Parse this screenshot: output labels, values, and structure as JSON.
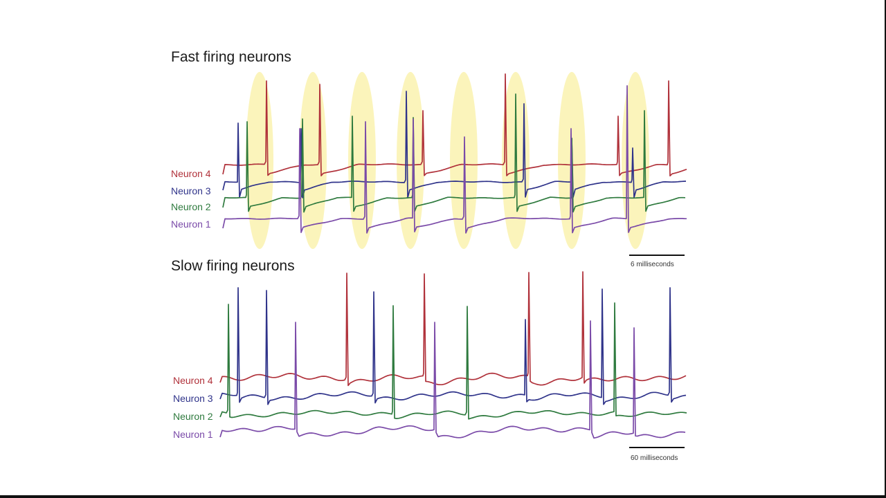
{
  "chart_data": [
    {
      "type": "line",
      "title": "Fast firing neurons",
      "scale_bar_label": "6 milliseconds",
      "series": [
        {
          "name": "Neuron 4",
          "color": "#b0313a",
          "spikes": [
            385,
            462,
            611,
            730,
            893,
            966
          ]
        },
        {
          "name": "Neuron 3",
          "color": "#2f338a",
          "spikes": [
            344,
            435,
            587,
            757,
            826,
            914
          ]
        },
        {
          "name": "Neuron 2",
          "color": "#2e7a3e",
          "spikes": [
            357,
            437,
            509,
            597,
            745,
            826,
            931
          ]
        },
        {
          "name": "Neuron 1",
          "color": "#7a4aa8",
          "spikes": [
            433,
            528,
            597,
            671,
            825,
            906
          ]
        }
      ],
      "sync_windows": 8
    },
    {
      "type": "line",
      "title": "Slow firing neurons",
      "scale_bar_label": "60 milliseconds",
      "series": [
        {
          "name": "Neuron 4",
          "color": "#b0313a",
          "spikes": [
            501,
            613,
            764,
            842
          ]
        },
        {
          "name": "Neuron 3",
          "color": "#2f338a",
          "spikes": [
            344,
            385,
            540,
            759,
            870,
            968
          ]
        },
        {
          "name": "Neuron 2",
          "color": "#2e7a3e",
          "spikes": [
            330,
            568,
            675,
            888
          ]
        },
        {
          "name": "Neuron 1",
          "color": "#7a4aa8",
          "spikes": [
            427,
            628,
            853,
            916
          ]
        }
      ]
    }
  ]
}
